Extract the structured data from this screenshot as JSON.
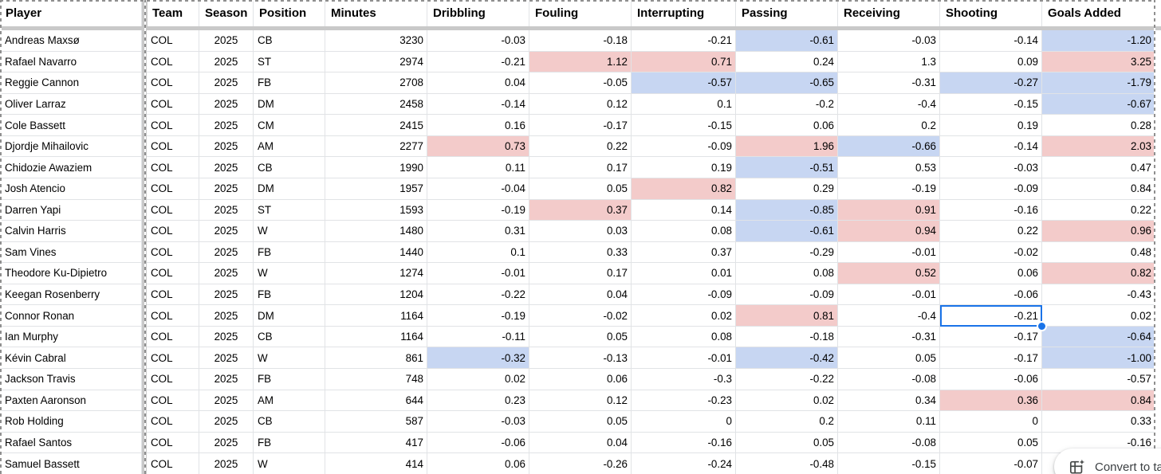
{
  "colors": {
    "highlight_red": "#f3cbca",
    "highlight_blue": "#c7d6f2",
    "selection_blue": "#1a73e8",
    "frozen_divider": "#c9c9c9",
    "gridline": "#e1e3e6",
    "marquee_gray": "#8f8f8f"
  },
  "convert_button": {
    "label": "Convert to ta",
    "icon": "convert-to-table-icon"
  },
  "selection": {
    "row": 13,
    "metric": 5
  },
  "table": {
    "columns": [
      {
        "key": "player",
        "label": "Player"
      },
      {
        "key": "team",
        "label": "Team"
      },
      {
        "key": "season",
        "label": "Season"
      },
      {
        "key": "position",
        "label": "Position"
      },
      {
        "key": "minutes",
        "label": "Minutes"
      },
      {
        "key": "dribbling",
        "label": "Dribbling"
      },
      {
        "key": "fouling",
        "label": "Fouling"
      },
      {
        "key": "interrupting",
        "label": "Interrupting"
      },
      {
        "key": "passing",
        "label": "Passing"
      },
      {
        "key": "receiving",
        "label": "Receiving"
      },
      {
        "key": "shooting",
        "label": "Shooting"
      },
      {
        "key": "goals_added",
        "label": "Goals Added"
      }
    ],
    "rows": [
      {
        "player": "Andreas Maxsø",
        "team": "COL",
        "season": "2025",
        "position": "CB",
        "minutes": "3230",
        "metrics": [
          {
            "v": "-0.03"
          },
          {
            "v": "-0.18"
          },
          {
            "v": "-0.21"
          },
          {
            "v": "-0.61",
            "bg": "blue"
          },
          {
            "v": "-0.03"
          },
          {
            "v": "-0.14"
          },
          {
            "v": "-1.20",
            "bg": "blue"
          }
        ]
      },
      {
        "player": "Rafael Navarro",
        "team": "COL",
        "season": "2025",
        "position": "ST",
        "minutes": "2974",
        "metrics": [
          {
            "v": "-0.21"
          },
          {
            "v": "1.12",
            "bg": "red"
          },
          {
            "v": "0.71",
            "bg": "red"
          },
          {
            "v": "0.24"
          },
          {
            "v": "1.3"
          },
          {
            "v": "0.09"
          },
          {
            "v": "3.25",
            "bg": "red"
          }
        ]
      },
      {
        "player": "Reggie Cannon",
        "team": "COL",
        "season": "2025",
        "position": "FB",
        "minutes": "2708",
        "metrics": [
          {
            "v": "0.04"
          },
          {
            "v": "-0.05"
          },
          {
            "v": "-0.57",
            "bg": "blue"
          },
          {
            "v": "-0.65",
            "bg": "blue"
          },
          {
            "v": "-0.31"
          },
          {
            "v": "-0.27",
            "bg": "blue"
          },
          {
            "v": "-1.79",
            "bg": "blue"
          }
        ]
      },
      {
        "player": "Oliver Larraz",
        "team": "COL",
        "season": "2025",
        "position": "DM",
        "minutes": "2458",
        "metrics": [
          {
            "v": "-0.14"
          },
          {
            "v": "0.12"
          },
          {
            "v": "0.1"
          },
          {
            "v": "-0.2"
          },
          {
            "v": "-0.4"
          },
          {
            "v": "-0.15"
          },
          {
            "v": "-0.67",
            "bg": "blue"
          }
        ]
      },
      {
        "player": "Cole Bassett",
        "team": "COL",
        "season": "2025",
        "position": "CM",
        "minutes": "2415",
        "metrics": [
          {
            "v": "0.16"
          },
          {
            "v": "-0.17"
          },
          {
            "v": "-0.15"
          },
          {
            "v": "0.06"
          },
          {
            "v": "0.2"
          },
          {
            "v": "0.19"
          },
          {
            "v": "0.28"
          }
        ]
      },
      {
        "player": "Djordje Mihailovic",
        "team": "COL",
        "season": "2025",
        "position": "AM",
        "minutes": "2277",
        "metrics": [
          {
            "v": "0.73",
            "bg": "red"
          },
          {
            "v": "0.22"
          },
          {
            "v": "-0.09"
          },
          {
            "v": "1.96",
            "bg": "red"
          },
          {
            "v": "-0.66",
            "bg": "blue"
          },
          {
            "v": "-0.14"
          },
          {
            "v": "2.03",
            "bg": "red"
          }
        ]
      },
      {
        "player": "Chidozie Awaziem",
        "team": "COL",
        "season": "2025",
        "position": "CB",
        "minutes": "1990",
        "metrics": [
          {
            "v": "0.11"
          },
          {
            "v": "0.17"
          },
          {
            "v": "0.19"
          },
          {
            "v": "-0.51",
            "bg": "blue"
          },
          {
            "v": "0.53"
          },
          {
            "v": "-0.03"
          },
          {
            "v": "0.47"
          }
        ]
      },
      {
        "player": "Josh Atencio",
        "team": "COL",
        "season": "2025",
        "position": "DM",
        "minutes": "1957",
        "metrics": [
          {
            "v": "-0.04"
          },
          {
            "v": "0.05"
          },
          {
            "v": "0.82",
            "bg": "red"
          },
          {
            "v": "0.29"
          },
          {
            "v": "-0.19"
          },
          {
            "v": "-0.09"
          },
          {
            "v": "0.84"
          }
        ]
      },
      {
        "player": "Darren Yapi",
        "team": "COL",
        "season": "2025",
        "position": "ST",
        "minutes": "1593",
        "metrics": [
          {
            "v": "-0.19"
          },
          {
            "v": "0.37",
            "bg": "red"
          },
          {
            "v": "0.14"
          },
          {
            "v": "-0.85",
            "bg": "blue"
          },
          {
            "v": "0.91",
            "bg": "red"
          },
          {
            "v": "-0.16"
          },
          {
            "v": "0.22"
          }
        ]
      },
      {
        "player": "Calvin Harris",
        "team": "COL",
        "season": "2025",
        "position": "W",
        "minutes": "1480",
        "metrics": [
          {
            "v": "0.31"
          },
          {
            "v": "0.03"
          },
          {
            "v": "0.08"
          },
          {
            "v": "-0.61",
            "bg": "blue"
          },
          {
            "v": "0.94",
            "bg": "red"
          },
          {
            "v": "0.22"
          },
          {
            "v": "0.96",
            "bg": "red"
          }
        ]
      },
      {
        "player": "Sam Vines",
        "team": "COL",
        "season": "2025",
        "position": "FB",
        "minutes": "1440",
        "metrics": [
          {
            "v": "0.1"
          },
          {
            "v": "0.33"
          },
          {
            "v": "0.37"
          },
          {
            "v": "-0.29"
          },
          {
            "v": "-0.01"
          },
          {
            "v": "-0.02"
          },
          {
            "v": "0.48"
          }
        ]
      },
      {
        "player": "Theodore Ku-Dipietro",
        "team": "COL",
        "season": "2025",
        "position": "W",
        "minutes": "1274",
        "metrics": [
          {
            "v": "-0.01"
          },
          {
            "v": "0.17"
          },
          {
            "v": "0.01"
          },
          {
            "v": "0.08"
          },
          {
            "v": "0.52",
            "bg": "red"
          },
          {
            "v": "0.06"
          },
          {
            "v": "0.82",
            "bg": "red"
          }
        ]
      },
      {
        "player": "Keegan Rosenberry",
        "team": "COL",
        "season": "2025",
        "position": "FB",
        "minutes": "1204",
        "metrics": [
          {
            "v": "-0.22"
          },
          {
            "v": "0.04"
          },
          {
            "v": "-0.09"
          },
          {
            "v": "-0.09"
          },
          {
            "v": "-0.01"
          },
          {
            "v": "-0.06"
          },
          {
            "v": "-0.43"
          }
        ]
      },
      {
        "player": "Connor Ronan",
        "team": "COL",
        "season": "2025",
        "position": "DM",
        "minutes": "1164",
        "metrics": [
          {
            "v": "-0.19"
          },
          {
            "v": "-0.02"
          },
          {
            "v": "0.02"
          },
          {
            "v": "0.81",
            "bg": "red"
          },
          {
            "v": "-0.4"
          },
          {
            "v": "-0.21"
          },
          {
            "v": "0.02"
          }
        ]
      },
      {
        "player": "Ian Murphy",
        "team": "COL",
        "season": "2025",
        "position": "CB",
        "minutes": "1164",
        "metrics": [
          {
            "v": "-0.11"
          },
          {
            "v": "0.05"
          },
          {
            "v": "0.08"
          },
          {
            "v": "-0.18"
          },
          {
            "v": "-0.31"
          },
          {
            "v": "-0.17"
          },
          {
            "v": "-0.64",
            "bg": "blue"
          }
        ]
      },
      {
        "player": "Kévin Cabral",
        "team": "COL",
        "season": "2025",
        "position": "W",
        "minutes": "861",
        "metrics": [
          {
            "v": "-0.32",
            "bg": "blue"
          },
          {
            "v": "-0.13"
          },
          {
            "v": "-0.01"
          },
          {
            "v": "-0.42",
            "bg": "blue"
          },
          {
            "v": "0.05"
          },
          {
            "v": "-0.17"
          },
          {
            "v": "-1.00",
            "bg": "blue"
          }
        ]
      },
      {
        "player": "Jackson Travis",
        "team": "COL",
        "season": "2025",
        "position": "FB",
        "minutes": "748",
        "metrics": [
          {
            "v": "0.02"
          },
          {
            "v": "0.06"
          },
          {
            "v": "-0.3"
          },
          {
            "v": "-0.22"
          },
          {
            "v": "-0.08"
          },
          {
            "v": "-0.06"
          },
          {
            "v": "-0.57"
          }
        ]
      },
      {
        "player": "Paxten Aaronson",
        "team": "COL",
        "season": "2025",
        "position": "AM",
        "minutes": "644",
        "metrics": [
          {
            "v": "0.23"
          },
          {
            "v": "0.12"
          },
          {
            "v": "-0.23"
          },
          {
            "v": "0.02"
          },
          {
            "v": "0.34"
          },
          {
            "v": "0.36",
            "bg": "red"
          },
          {
            "v": "0.84",
            "bg": "red"
          }
        ]
      },
      {
        "player": "Rob Holding",
        "team": "COL",
        "season": "2025",
        "position": "CB",
        "minutes": "587",
        "metrics": [
          {
            "v": "-0.03"
          },
          {
            "v": "0.05"
          },
          {
            "v": "0"
          },
          {
            "v": "0.2"
          },
          {
            "v": "0.11"
          },
          {
            "v": "0"
          },
          {
            "v": "0.33"
          }
        ]
      },
      {
        "player": "Rafael Santos",
        "team": "COL",
        "season": "2025",
        "position": "FB",
        "minutes": "417",
        "metrics": [
          {
            "v": "-0.06"
          },
          {
            "v": "0.04"
          },
          {
            "v": "-0.16"
          },
          {
            "v": "0.05"
          },
          {
            "v": "-0.08"
          },
          {
            "v": "0.05"
          },
          {
            "v": "-0.16"
          }
        ]
      },
      {
        "player": "Samuel Bassett",
        "team": "COL",
        "season": "2025",
        "position": "W",
        "minutes": "414",
        "metrics": [
          {
            "v": "0.06"
          },
          {
            "v": "-0.26"
          },
          {
            "v": "-0.24"
          },
          {
            "v": "-0.48"
          },
          {
            "v": "-0.15"
          },
          {
            "v": "-0.07"
          },
          {
            "v": ""
          }
        ]
      }
    ]
  }
}
